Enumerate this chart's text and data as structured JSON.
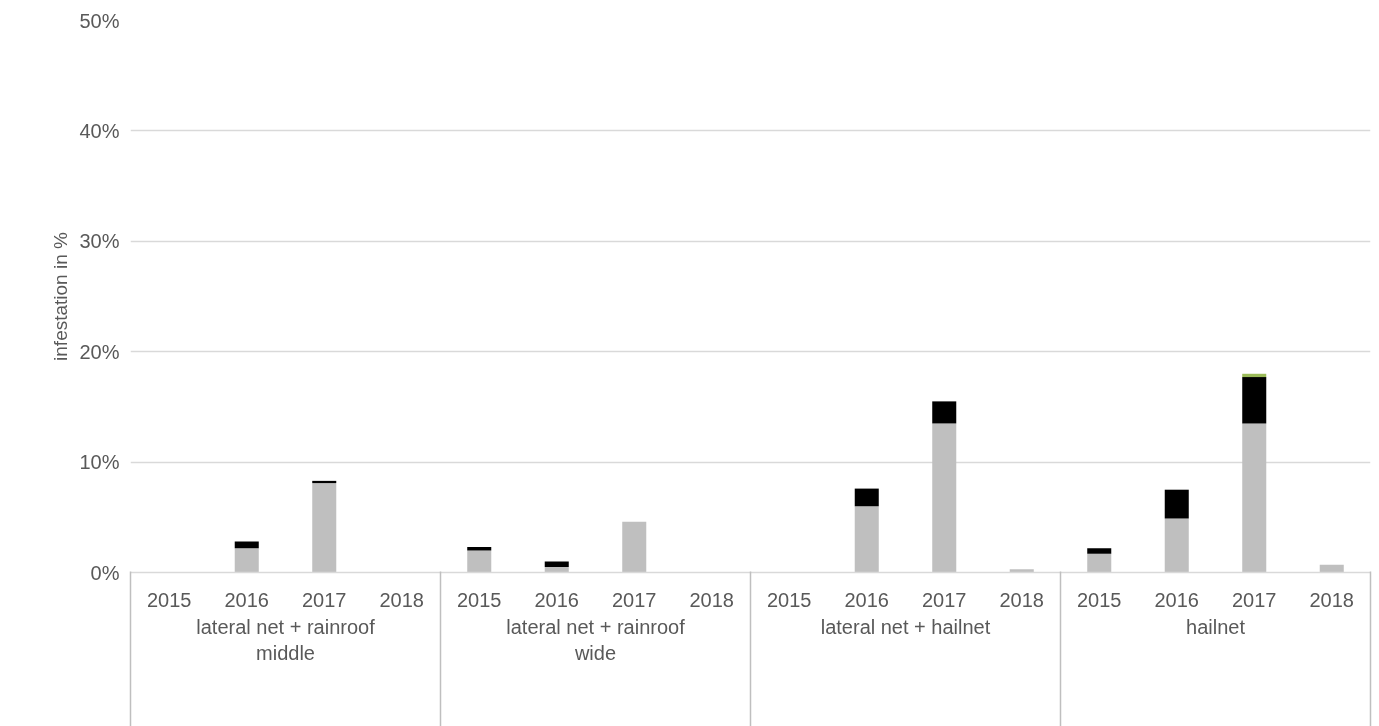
{
  "chart_data": {
    "type": "bar",
    "stacked": true,
    "ylabel": "infestation in %",
    "categories": [
      "2015",
      "2016",
      "2017",
      "2018",
      "2015",
      "2016",
      "2017",
      "2018",
      "2015",
      "2016",
      "2017",
      "2018",
      "2015",
      "2016",
      "2017",
      "2018"
    ],
    "series": [
      {
        "color": "#bfbfbf",
        "values": [
          0,
          2.2,
          8.1,
          0,
          2.0,
          0.5,
          4.6,
          0,
          0,
          6.0,
          13.5,
          0.3,
          1.7,
          4.9,
          13.5,
          0.7
        ]
      },
      {
        "color": "#000000",
        "values": [
          0,
          0.6,
          0.2,
          0,
          0.3,
          0.5,
          0,
          0,
          0,
          1.6,
          2.0,
          0,
          0.5,
          2.6,
          4.2,
          0
        ]
      },
      {
        "color": "#9bbb59",
        "values": [
          0,
          0,
          0,
          0,
          0,
          0,
          0,
          0,
          0,
          0,
          0,
          0,
          0,
          0,
          0.3,
          0
        ]
      }
    ],
    "annotations": [
      "lateral net + rainroof middle",
      "lateral net + rainroof wide",
      "lateral net + hailnet",
      "hailnet"
    ],
    "ylim": [
      0,
      50
    ],
    "yticks": [
      {
        "value": 0,
        "label": "0%"
      },
      {
        "value": 10,
        "label": "10%"
      },
      {
        "value": 20,
        "label": "20%"
      },
      {
        "value": 30,
        "label": "30%"
      },
      {
        "value": 40,
        "label": "40%"
      },
      {
        "value": 50,
        "label": "50%"
      }
    ],
    "grid": "y"
  }
}
